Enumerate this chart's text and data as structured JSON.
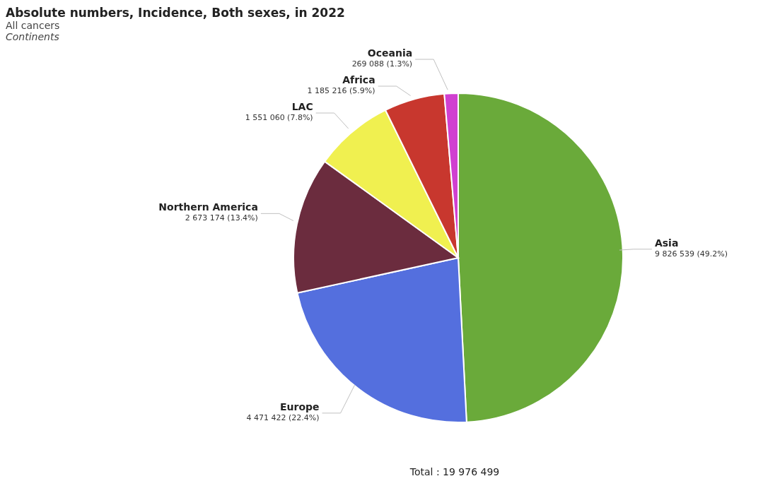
{
  "chart_data": {
    "type": "pie",
    "title": "Absolute numbers, Incidence, Both sexes, in 2022",
    "subtitle": "All cancers",
    "annotations": [
      "Continents",
      "Total : 19 976 499"
    ],
    "categories": [
      "Asia",
      "Europe",
      "Northern America",
      "LAC",
      "Africa",
      "Oceania"
    ],
    "values": [
      9826539,
      4471422,
      2673174,
      1551060,
      1185216,
      269088
    ],
    "value_labels": [
      "9 826 539 (49.2%)",
      "4 471 422 (22.4%)",
      "2 673 174 (13.4%)",
      "1 551 060 (7.8%)",
      "1 185 216 (5.9%)",
      "269 088 (1.3%)"
    ],
    "colors": [
      "#6aaa3a",
      "#546fde",
      "#6b2c3e",
      "#f0f050",
      "#c8372e",
      "#d040d0"
    ],
    "legend": false
  }
}
